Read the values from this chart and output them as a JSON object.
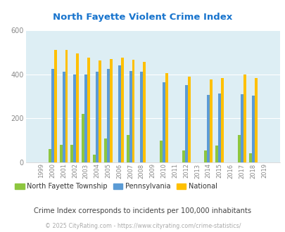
{
  "title": "North Fayette Violent Crime Index",
  "title_color": "#1874cd",
  "years": [
    1999,
    2000,
    2001,
    2002,
    2003,
    2004,
    2005,
    2006,
    2007,
    2008,
    2009,
    2010,
    2011,
    2012,
    2013,
    2014,
    2015,
    2016,
    2017,
    2018,
    2019
  ],
  "north_fayette": [
    0,
    60,
    80,
    80,
    220,
    35,
    110,
    0,
    125,
    0,
    0,
    100,
    0,
    55,
    0,
    55,
    75,
    0,
    125,
    42,
    0
  ],
  "pennsylvania": [
    0,
    425,
    410,
    400,
    400,
    412,
    425,
    440,
    415,
    410,
    0,
    365,
    0,
    350,
    0,
    305,
    312,
    0,
    308,
    303,
    0
  ],
  "national": [
    0,
    510,
    510,
    495,
    475,
    463,
    470,
    475,
    465,
    455,
    0,
    405,
    0,
    390,
    0,
    376,
    383,
    0,
    398,
    383,
    0
  ],
  "nft_color": "#8dc63f",
  "pa_color": "#5b9bd5",
  "nat_color": "#ffc000",
  "bg_color": "#ddeef4",
  "grid_color": "#ffffff",
  "ylim": [
    0,
    600
  ],
  "yticks": [
    0,
    200,
    400,
    600
  ],
  "tick_color": "#888888",
  "subtitle": "Crime Index corresponds to incidents per 100,000 inhabitants",
  "subtitle_color": "#444444",
  "footer": "© 2025 CityRating.com - https://www.cityrating.com/crime-statistics/",
  "footer_color": "#aaaaaa",
  "bar_width": 0.25,
  "legend_labels": [
    "North Fayette Township",
    "Pennsylvania",
    "National"
  ]
}
